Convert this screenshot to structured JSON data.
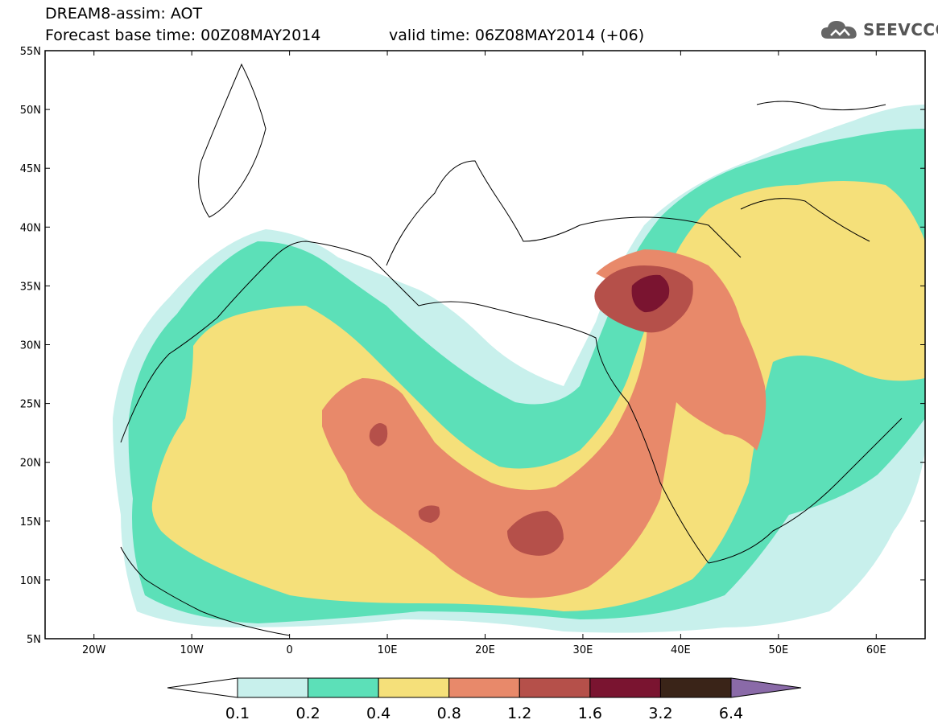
{
  "header": {
    "line1": "DREAM8-assim: AOT",
    "line2": "Forecast base time: 00Z08MAY2014",
    "valid": "valid time: 06Z08MAY2014 (+06)"
  },
  "logo": {
    "text": "SEEVCCC",
    "icon": "cloud-icon"
  },
  "map": {
    "lat_labels": [
      "5N",
      "10N",
      "15N",
      "20N",
      "25N",
      "30N",
      "35N",
      "40N",
      "45N",
      "50N",
      "55N"
    ],
    "lon_labels": [
      "20W",
      "10W",
      "0",
      "10E",
      "20E",
      "30E",
      "40E",
      "50E",
      "60E"
    ],
    "lat_values": [
      5,
      10,
      15,
      20,
      25,
      30,
      35,
      40,
      45,
      50,
      55
    ],
    "lon_values": [
      -20,
      -10,
      0,
      10,
      20,
      30,
      40,
      50,
      60
    ],
    "lat_range": [
      5,
      55
    ],
    "lon_range": [
      -25,
      65
    ]
  },
  "legend": {
    "labels": [
      "0.1",
      "0.2",
      "0.4",
      "0.8",
      "1.2",
      "1.6",
      "3.2",
      "6.4"
    ],
    "colors": [
      "#ffffff",
      "#c8f0ec",
      "#5ce0b8",
      "#f5e07a",
      "#e8896a",
      "#b5504a",
      "#7a1430",
      "#3a2418",
      "#8a6aa8"
    ]
  }
}
